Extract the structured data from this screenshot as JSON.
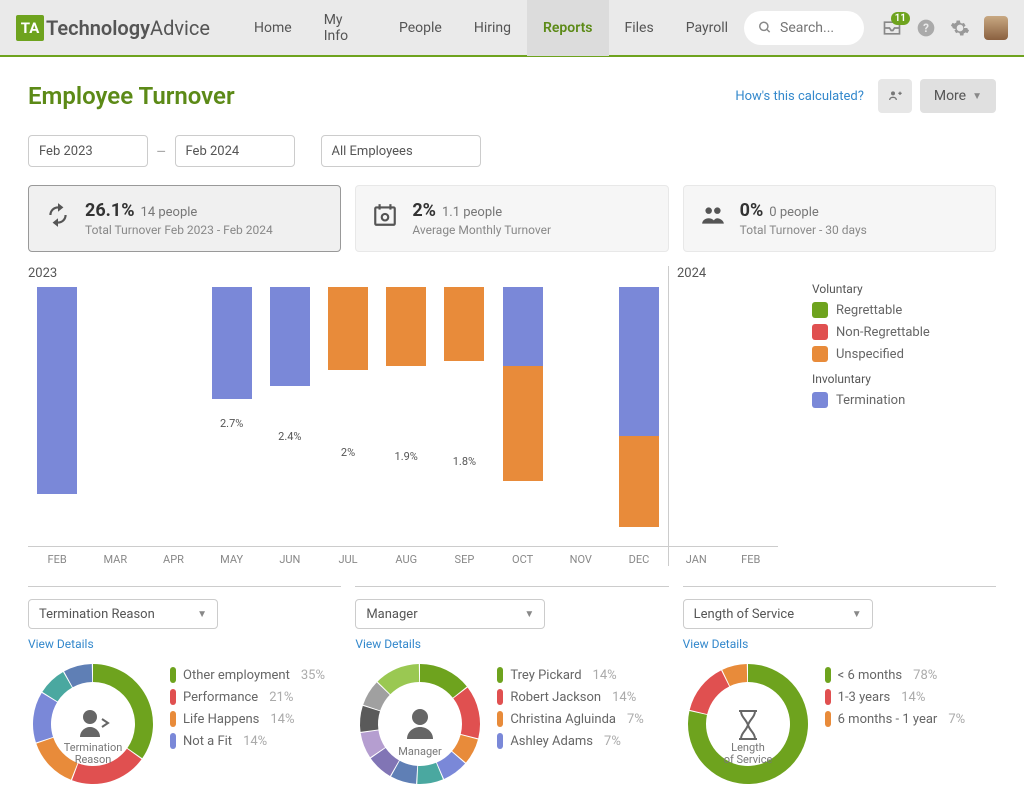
{
  "logo": {
    "mark": "TA",
    "text1": "Technology",
    "text2": "Advice"
  },
  "nav": {
    "items": [
      "Home",
      "My Info",
      "People",
      "Hiring",
      "Reports",
      "Files",
      "Payroll"
    ],
    "active_index": 4
  },
  "search_placeholder": "Search...",
  "notif_count": "11",
  "page_title": "Employee Turnover",
  "calc_link": "How's this calculated?",
  "more_label": "More",
  "filters": {
    "from": "Feb 2023",
    "to": "Feb 2024",
    "scope": "All Employees"
  },
  "stats": [
    {
      "big": "26.1%",
      "sub": "14 people",
      "line2": "Total Turnover Feb 2023 - Feb 2024",
      "icon": "refresh",
      "selected": true
    },
    {
      "big": "2%",
      "sub": "1.1 people",
      "line2": "Average Monthly Turnover",
      "icon": "calendar",
      "selected": false
    },
    {
      "big": "0%",
      "sub": "0 people",
      "line2": "Total Turnover - 30 days",
      "icon": "people",
      "selected": false
    }
  ],
  "chart": {
    "year_left": "2023",
    "year_right": "2024",
    "colors": {
      "regrettable": "#6ea31e",
      "non_regrettable": "#e05050",
      "unspecified": "#e88b3a",
      "termination": "#7a88d8"
    },
    "max_pct": 6.0,
    "months_left": [
      {
        "m": "FEB",
        "label": "5%",
        "segs": [
          {
            "c": "termination",
            "v": 5.0
          }
        ]
      },
      {
        "m": "MAR",
        "label": "",
        "segs": []
      },
      {
        "m": "APR",
        "label": "",
        "segs": []
      },
      {
        "m": "MAY",
        "label": "2.7%",
        "segs": [
          {
            "c": "termination",
            "v": 2.7
          }
        ]
      },
      {
        "m": "JUN",
        "label": "2.4%",
        "segs": [
          {
            "c": "termination",
            "v": 2.4
          }
        ]
      },
      {
        "m": "JUL",
        "label": "2%",
        "segs": [
          {
            "c": "unspecified",
            "v": 2.0
          }
        ]
      },
      {
        "m": "AUG",
        "label": "1.9%",
        "segs": [
          {
            "c": "unspecified",
            "v": 1.9
          }
        ]
      },
      {
        "m": "SEP",
        "label": "1.8%",
        "segs": [
          {
            "c": "unspecified",
            "v": 1.8
          }
        ]
      },
      {
        "m": "OCT",
        "label": "4.7%",
        "segs": [
          {
            "c": "unspecified",
            "v": 2.8
          },
          {
            "c": "termination",
            "v": 1.9
          }
        ]
      },
      {
        "m": "NOV",
        "label": "",
        "segs": []
      },
      {
        "m": "DEC",
        "label": "5.8%",
        "segs": [
          {
            "c": "unspecified",
            "v": 2.2
          },
          {
            "c": "termination",
            "v": 3.6
          }
        ]
      }
    ],
    "months_right": [
      {
        "m": "JAN",
        "label": "",
        "segs": []
      },
      {
        "m": "FEB",
        "label": "",
        "segs": []
      }
    ],
    "legend": {
      "voluntary_title": "Voluntary",
      "involuntary_title": "Involuntary",
      "voluntary": [
        {
          "label": "Regrettable",
          "key": "regrettable"
        },
        {
          "label": "Non-Regrettable",
          "key": "non_regrettable"
        },
        {
          "label": "Unspecified",
          "key": "unspecified"
        }
      ],
      "involuntary": [
        {
          "label": "Termination",
          "key": "termination"
        }
      ]
    }
  },
  "donuts": [
    {
      "title": "Termination Reason",
      "center_label": "Termination Reason",
      "center_icon": "person-exit",
      "slices": [
        {
          "label": "Other employment",
          "pct": "35%",
          "v": 35,
          "color": "#6ea31e"
        },
        {
          "label": "Performance",
          "pct": "21%",
          "v": 21,
          "color": "#e05050"
        },
        {
          "label": "Life Happens",
          "pct": "14%",
          "v": 14,
          "color": "#e88b3a"
        },
        {
          "label": "Not a Fit",
          "pct": "14%",
          "v": 14,
          "color": "#7a88d8"
        }
      ],
      "extra_slices": [
        {
          "v": 8,
          "color": "#4aa8a0"
        },
        {
          "v": 8,
          "color": "#5f7fb5"
        }
      ]
    },
    {
      "title": "Manager",
      "center_label": "Manager",
      "center_icon": "person",
      "slices": [
        {
          "label": "Trey Pickard",
          "pct": "14%",
          "v": 14,
          "color": "#6ea31e"
        },
        {
          "label": "Robert Jackson",
          "pct": "14%",
          "v": 14,
          "color": "#e05050"
        },
        {
          "label": "Christina Agluinda",
          "pct": "7%",
          "v": 7,
          "color": "#e88b3a"
        },
        {
          "label": "Ashley Adams",
          "pct": "7%",
          "v": 7,
          "color": "#7a88d8"
        }
      ],
      "extra_slices": [
        {
          "v": 7,
          "color": "#4aa8a0"
        },
        {
          "v": 7,
          "color": "#5f7fb5"
        },
        {
          "v": 7,
          "color": "#8175b5"
        },
        {
          "v": 7,
          "color": "#b59ed0"
        },
        {
          "v": 7,
          "color": "#5a5a5a"
        },
        {
          "v": 7,
          "color": "#a0a0a0"
        },
        {
          "v": 12,
          "color": "#9ac852"
        }
      ]
    },
    {
      "title": "Length of Service",
      "center_label": "Length of Service",
      "center_icon": "hourglass",
      "slices": [
        {
          "label": "< 6 months",
          "pct": "78%",
          "v": 78,
          "color": "#6ea31e"
        },
        {
          "label": "1-3 years",
          "pct": "14%",
          "v": 14,
          "color": "#e05050"
        },
        {
          "label": "6 months - 1 year",
          "pct": "7%",
          "v": 7,
          "color": "#e88b3a"
        }
      ],
      "extra_slices": []
    }
  ],
  "view_details": "View Details"
}
